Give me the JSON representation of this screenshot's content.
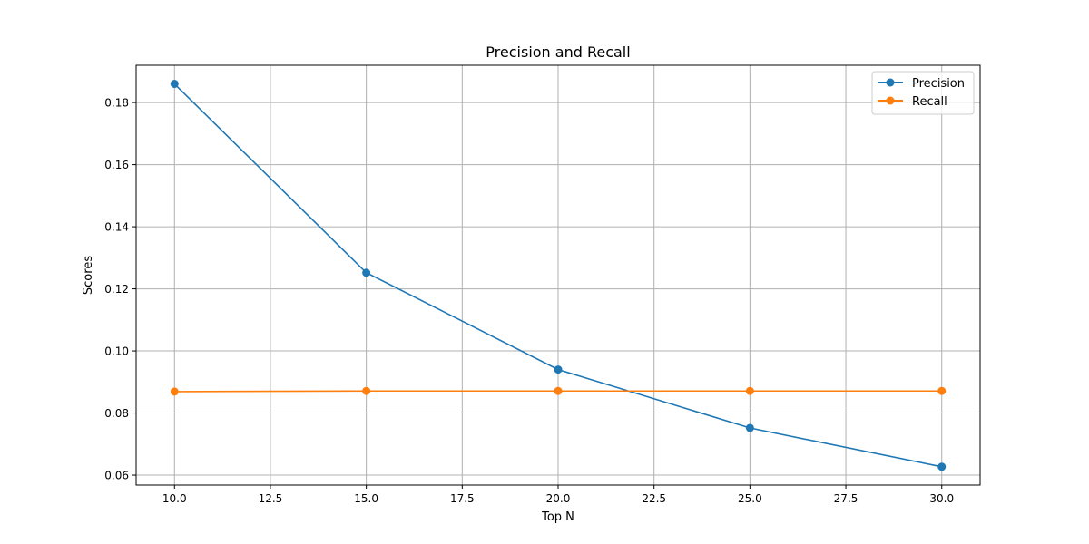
{
  "chart_data": {
    "type": "line",
    "title": "Precision and Recall",
    "xlabel": "Top N",
    "ylabel": "Scores",
    "xlim": [
      9.0,
      31.0
    ],
    "ylim": [
      0.0568,
      0.192
    ],
    "xticks": [
      10.0,
      12.5,
      15.0,
      17.5,
      20.0,
      22.5,
      25.0,
      27.5,
      30.0
    ],
    "xtick_labels": [
      "10.0",
      "12.5",
      "15.0",
      "17.5",
      "20.0",
      "22.5",
      "25.0",
      "27.5",
      "30.0"
    ],
    "yticks": [
      0.06,
      0.08,
      0.1,
      0.12,
      0.14,
      0.16,
      0.18
    ],
    "ytick_labels": [
      "0.06",
      "0.08",
      "0.10",
      "0.12",
      "0.14",
      "0.16",
      "0.18"
    ],
    "grid": true,
    "legend_position": "top-right",
    "x": [
      10,
      15,
      20,
      25,
      30
    ],
    "series": [
      {
        "name": "Precision",
        "color": "#1f77b4",
        "values": [
          0.186,
          0.1252,
          0.094,
          0.0752,
          0.0627
        ]
      },
      {
        "name": "Recall",
        "color": "#ff7f0e",
        "values": [
          0.0869,
          0.0871,
          0.0871,
          0.0871,
          0.0871
        ]
      }
    ]
  }
}
